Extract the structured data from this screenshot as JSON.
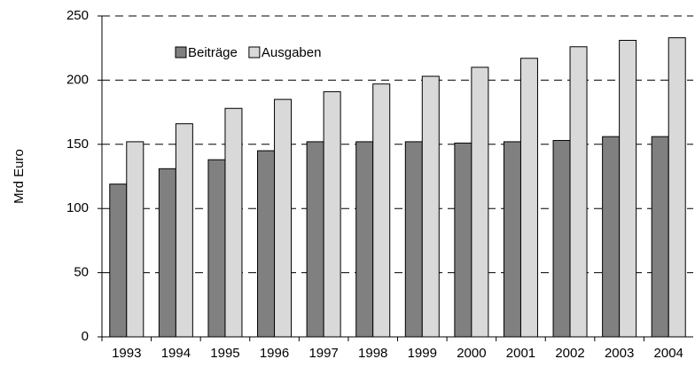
{
  "chart_data": {
    "type": "bar",
    "y_label": "Mrd Euro",
    "categories": [
      "1993",
      "1994",
      "1995",
      "1996",
      "1997",
      "1998",
      "1999",
      "2000",
      "2001",
      "2002",
      "2003",
      "2004"
    ],
    "series": [
      {
        "name": "Beiträge",
        "color": "#808080",
        "values": [
          119,
          131,
          138,
          145,
          152,
          152,
          152,
          151,
          152,
          153,
          156,
          156
        ]
      },
      {
        "name": "Ausgaben",
        "color": "#d9d9d9",
        "values": [
          152,
          166,
          178,
          185,
          191,
          197,
          203,
          210,
          217,
          226,
          231,
          233
        ]
      }
    ],
    "ylim": [
      0,
      250
    ],
    "yticks": [
      0,
      50,
      100,
      150,
      200,
      250
    ],
    "grid": true,
    "legend": "upper-left"
  }
}
